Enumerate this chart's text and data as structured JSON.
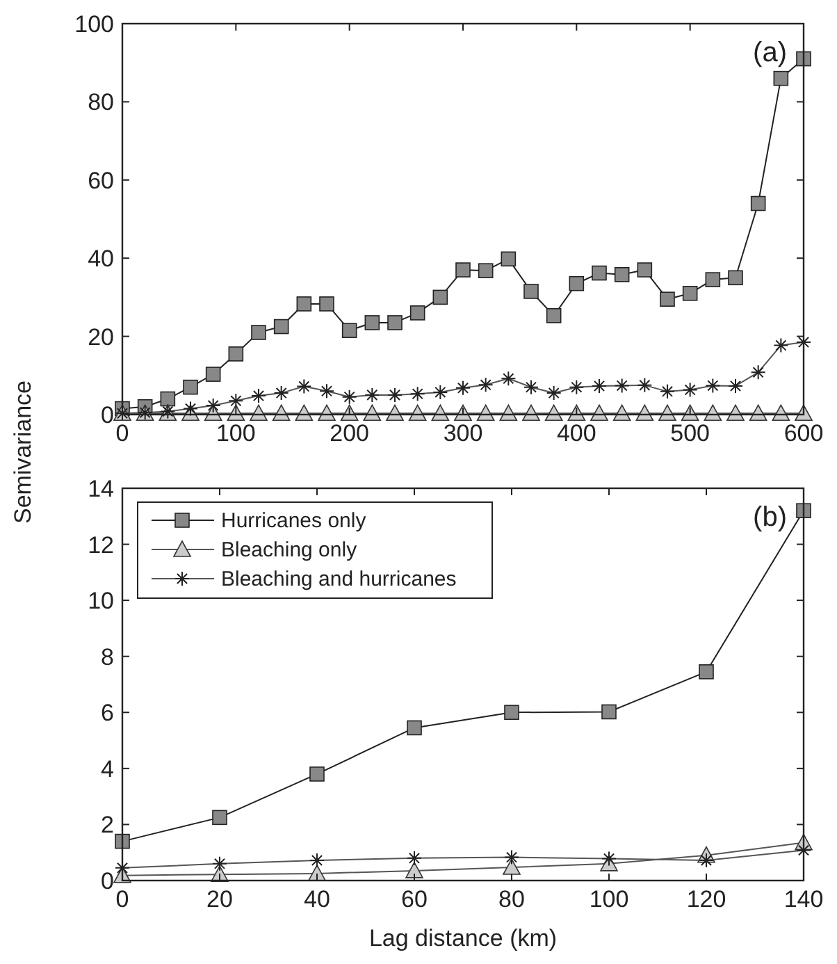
{
  "chart_data": [
    {
      "type": "line",
      "ylabel": "Semivariance",
      "annotations": [
        "(a)"
      ],
      "xlim": [
        0,
        600
      ],
      "xticks": [
        0,
        100,
        200,
        300,
        400,
        500,
        600
      ],
      "ylim": [
        0,
        100
      ],
      "yticks": [
        0,
        20,
        40,
        60,
        80,
        100
      ],
      "grid": false,
      "legend": false,
      "x": [
        0,
        20,
        40,
        60,
        80,
        100,
        120,
        140,
        160,
        180,
        200,
        220,
        240,
        260,
        280,
        300,
        320,
        340,
        360,
        380,
        400,
        420,
        440,
        460,
        480,
        500,
        520,
        540,
        560,
        580,
        600
      ],
      "series": [
        {
          "color": "#888888",
          "marker": "square",
          "values": [
            1.5,
            2,
            4,
            7,
            10.3,
            15.5,
            21,
            22.5,
            28.3,
            28.3,
            21.5,
            23.5,
            23.5,
            26,
            30,
            37,
            36.8,
            39.8,
            31.5,
            25.3,
            33.5,
            36.2,
            35.8,
            37,
            29.5,
            31,
            34.5,
            35,
            54,
            86,
            91
          ]
        },
        {
          "color": "#cccccc",
          "marker": "triangle",
          "values": [
            0.3,
            0.3,
            0.3,
            0.3,
            0.3,
            0.3,
            0.3,
            0.3,
            0.3,
            0.3,
            0.3,
            0.3,
            0.3,
            0.3,
            0.3,
            0.3,
            0.3,
            0.3,
            0.3,
            0.3,
            0.3,
            0.3,
            0.3,
            0.3,
            0.3,
            0.3,
            0.3,
            0.3,
            0.3,
            0.3,
            0.3
          ]
        },
        {
          "color": "#222222",
          "marker": "cross",
          "values": [
            0.3,
            0.5,
            0.8,
            1.5,
            2.3,
            3.5,
            4.8,
            5.5,
            7.2,
            6,
            4.5,
            5,
            5,
            5.3,
            5.7,
            6.8,
            7.6,
            9.2,
            7,
            5.5,
            7,
            7.3,
            7.4,
            7.5,
            5.9,
            6.3,
            7.4,
            7.3,
            10.8,
            17.7,
            18.5
          ]
        }
      ]
    },
    {
      "type": "line",
      "xlabel": "Lag distance (km)",
      "annotations": [
        "(b)"
      ],
      "xlim": [
        0,
        140
      ],
      "xticks": [
        0,
        20,
        40,
        60,
        80,
        100,
        120,
        140
      ],
      "ylim": [
        0,
        14
      ],
      "yticks": [
        0,
        2,
        4,
        6,
        8,
        10,
        12,
        14
      ],
      "grid": false,
      "legend": "top left",
      "x": [
        0,
        20,
        40,
        60,
        80,
        100,
        120,
        140
      ],
      "series": [
        {
          "name": "Hurricanes only",
          "color": "#888888",
          "marker": "square",
          "values": [
            1.4,
            2.25,
            3.8,
            5.45,
            6,
            6.02,
            7.45,
            13.2
          ]
        },
        {
          "name": "Bleaching only",
          "color": "#cccccc",
          "marker": "triangle",
          "values": [
            0.18,
            0.22,
            0.25,
            0.35,
            0.47,
            0.6,
            0.9,
            1.35
          ]
        },
        {
          "name": "Bleaching and hurricanes",
          "color": "#222222",
          "marker": "cross",
          "values": [
            0.45,
            0.6,
            0.72,
            0.8,
            0.83,
            0.78,
            0.72,
            1.08
          ]
        }
      ]
    }
  ]
}
